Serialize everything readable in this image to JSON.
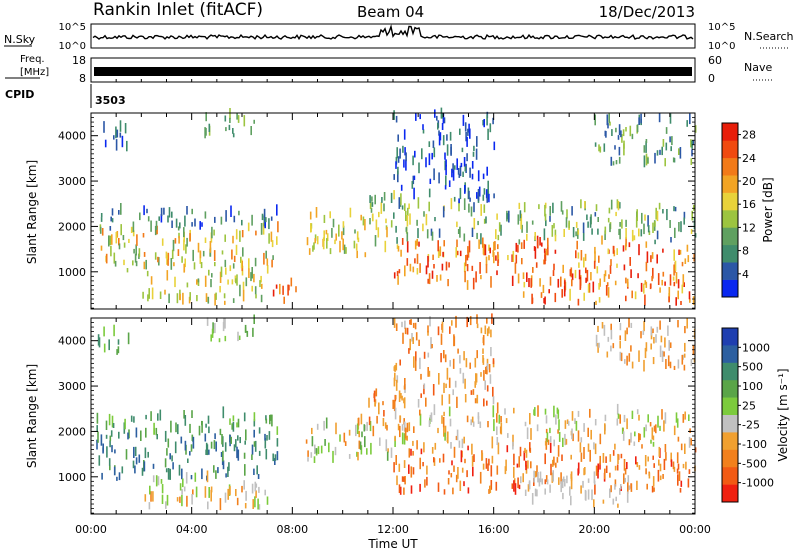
{
  "header": {
    "station": "Rankin Inlet (fitACF)",
    "beam": "Beam 04",
    "date": "18/Dec/2013"
  },
  "noise_panel": {
    "left_label": "N.Sky",
    "right_label": "N.Search",
    "left_ticks": [
      "10^5",
      "10^0"
    ],
    "right_ticks": [
      "10^5",
      "10^0"
    ]
  },
  "freq_panel": {
    "left_label_line1": "Freq.",
    "left_label_line2": "[MHz]",
    "right_label": "Nave",
    "left_ticks": [
      "18",
      "8"
    ],
    "right_ticks": [
      "60",
      "0"
    ]
  },
  "cpid_panel": {
    "label": "CPID",
    "value": "3503"
  },
  "x_axis": {
    "title": "Time UT",
    "ticks": [
      "00:00",
      "04:00",
      "08:00",
      "12:00",
      "16:00",
      "20:00",
      "00:00"
    ]
  },
  "chart_data": [
    {
      "type": "heatmap",
      "ylabel": "Slant Range [km]",
      "yticks": [
        "1000",
        "2000",
        "3000",
        "4000"
      ],
      "ylim": [
        180,
        4500
      ],
      "xlim_hours": [
        0,
        24
      ],
      "colorbar": {
        "label": "Power [dB]",
        "ticks": [
          "4",
          "8",
          "12",
          "16",
          "20",
          "24",
          "28"
        ],
        "colors": [
          "#0a28f0",
          "#2b57a6",
          "#3f8c6c",
          "#5fa060",
          "#9cc440",
          "#e8d23a",
          "#f2a424",
          "#f27a18",
          "#f04a10",
          "#e81e0a"
        ]
      },
      "regions": [
        {
          "t0": 0.2,
          "t1": 7.4,
          "r0": 900,
          "r1": 1900,
          "level": [
            0.3,
            0.8
          ]
        },
        {
          "t0": 0.2,
          "t1": 7.4,
          "r0": 1900,
          "r1": 2300,
          "level": [
            0.05,
            0.4
          ]
        },
        {
          "t0": 0.2,
          "t1": 1.5,
          "r0": 3600,
          "r1": 4100,
          "level": [
            0.05,
            0.3
          ]
        },
        {
          "t0": 2.0,
          "t1": 7.0,
          "r0": 250,
          "r1": 900,
          "level": [
            0.3,
            0.7
          ]
        },
        {
          "t0": 4.5,
          "t1": 6.5,
          "r0": 3900,
          "r1": 4400,
          "level": [
            0.2,
            0.5
          ]
        },
        {
          "t0": 7.0,
          "t1": 8.2,
          "r0": 250,
          "r1": 700,
          "level": [
            0.6,
            0.95
          ]
        },
        {
          "t0": 8.5,
          "t1": 12.0,
          "r0": 1300,
          "r1": 2200,
          "level": [
            0.3,
            0.7
          ]
        },
        {
          "t0": 11.0,
          "t1": 12.5,
          "r0": 2000,
          "r1": 2800,
          "level": [
            0.2,
            0.6
          ]
        },
        {
          "t0": 12.0,
          "t1": 24.0,
          "r0": 600,
          "r1": 1600,
          "level": [
            0.55,
            1.0
          ]
        },
        {
          "t0": 12.0,
          "t1": 24.0,
          "r0": 1600,
          "r1": 2400,
          "level": [
            0.15,
            0.6
          ]
        },
        {
          "t0": 12.0,
          "t1": 16.0,
          "r0": 2500,
          "r1": 4400,
          "level": [
            0.0,
            0.3
          ]
        },
        {
          "t0": 17.0,
          "t1": 24.0,
          "r0": 250,
          "r1": 700,
          "level": [
            0.5,
            1.0
          ]
        },
        {
          "t0": 20.0,
          "t1": 24.0,
          "r0": 3300,
          "r1": 4300,
          "level": [
            0.1,
            0.5
          ]
        }
      ]
    },
    {
      "type": "heatmap",
      "ylabel": "Slant Range [km]",
      "yticks": [
        "1000",
        "2000",
        "3000",
        "4000"
      ],
      "ylim": [
        180,
        4500
      ],
      "xlim_hours": [
        0,
        24
      ],
      "colorbar": {
        "label": "Velocity [m s⁻¹]",
        "ticks": [
          "1000",
          "500",
          "100",
          "25",
          "-25",
          "-100",
          "-500",
          "-1000"
        ],
        "colors": [
          "#1f3fb0",
          "#2c5fa0",
          "#3f8c6c",
          "#5aa548",
          "#7ccb3c",
          "#c0c0c0",
          "#f0a030",
          "#f2801c",
          "#f25a14",
          "#f02010"
        ]
      },
      "regions": [
        {
          "t0": 0.2,
          "t1": 7.4,
          "r0": 900,
          "r1": 1900,
          "level": [
            0.1,
            0.35
          ]
        },
        {
          "t0": 0.2,
          "t1": 7.4,
          "r0": 1900,
          "r1": 2300,
          "level": [
            0.2,
            0.45
          ]
        },
        {
          "t0": 0.2,
          "t1": 1.5,
          "r0": 3600,
          "r1": 4100,
          "level": [
            0.2,
            0.45
          ]
        },
        {
          "t0": 2.0,
          "t1": 7.0,
          "r0": 250,
          "r1": 900,
          "level": [
            0.4,
            0.75
          ]
        },
        {
          "t0": 4.5,
          "t1": 6.5,
          "r0": 3900,
          "r1": 4400,
          "level": [
            0.3,
            0.6
          ]
        },
        {
          "t0": 8.5,
          "t1": 12.0,
          "r0": 1300,
          "r1": 2200,
          "level": [
            0.35,
            0.75
          ]
        },
        {
          "t0": 11.0,
          "t1": 12.5,
          "r0": 2000,
          "r1": 2800,
          "level": [
            0.6,
            0.85
          ]
        },
        {
          "t0": 12.0,
          "t1": 24.0,
          "r0": 600,
          "r1": 1600,
          "level": [
            0.6,
            0.95
          ]
        },
        {
          "t0": 12.0,
          "t1": 24.0,
          "r0": 1600,
          "r1": 2400,
          "level": [
            0.4,
            0.8
          ]
        },
        {
          "t0": 12.0,
          "t1": 16.0,
          "r0": 2500,
          "r1": 4400,
          "level": [
            0.55,
            0.85
          ]
        },
        {
          "t0": 17.0,
          "t1": 22.0,
          "r0": 300,
          "r1": 900,
          "level": [
            0.5,
            0.62
          ]
        },
        {
          "t0": 20.0,
          "t1": 24.0,
          "r0": 3300,
          "r1": 4300,
          "level": [
            0.5,
            0.8
          ]
        }
      ]
    }
  ]
}
